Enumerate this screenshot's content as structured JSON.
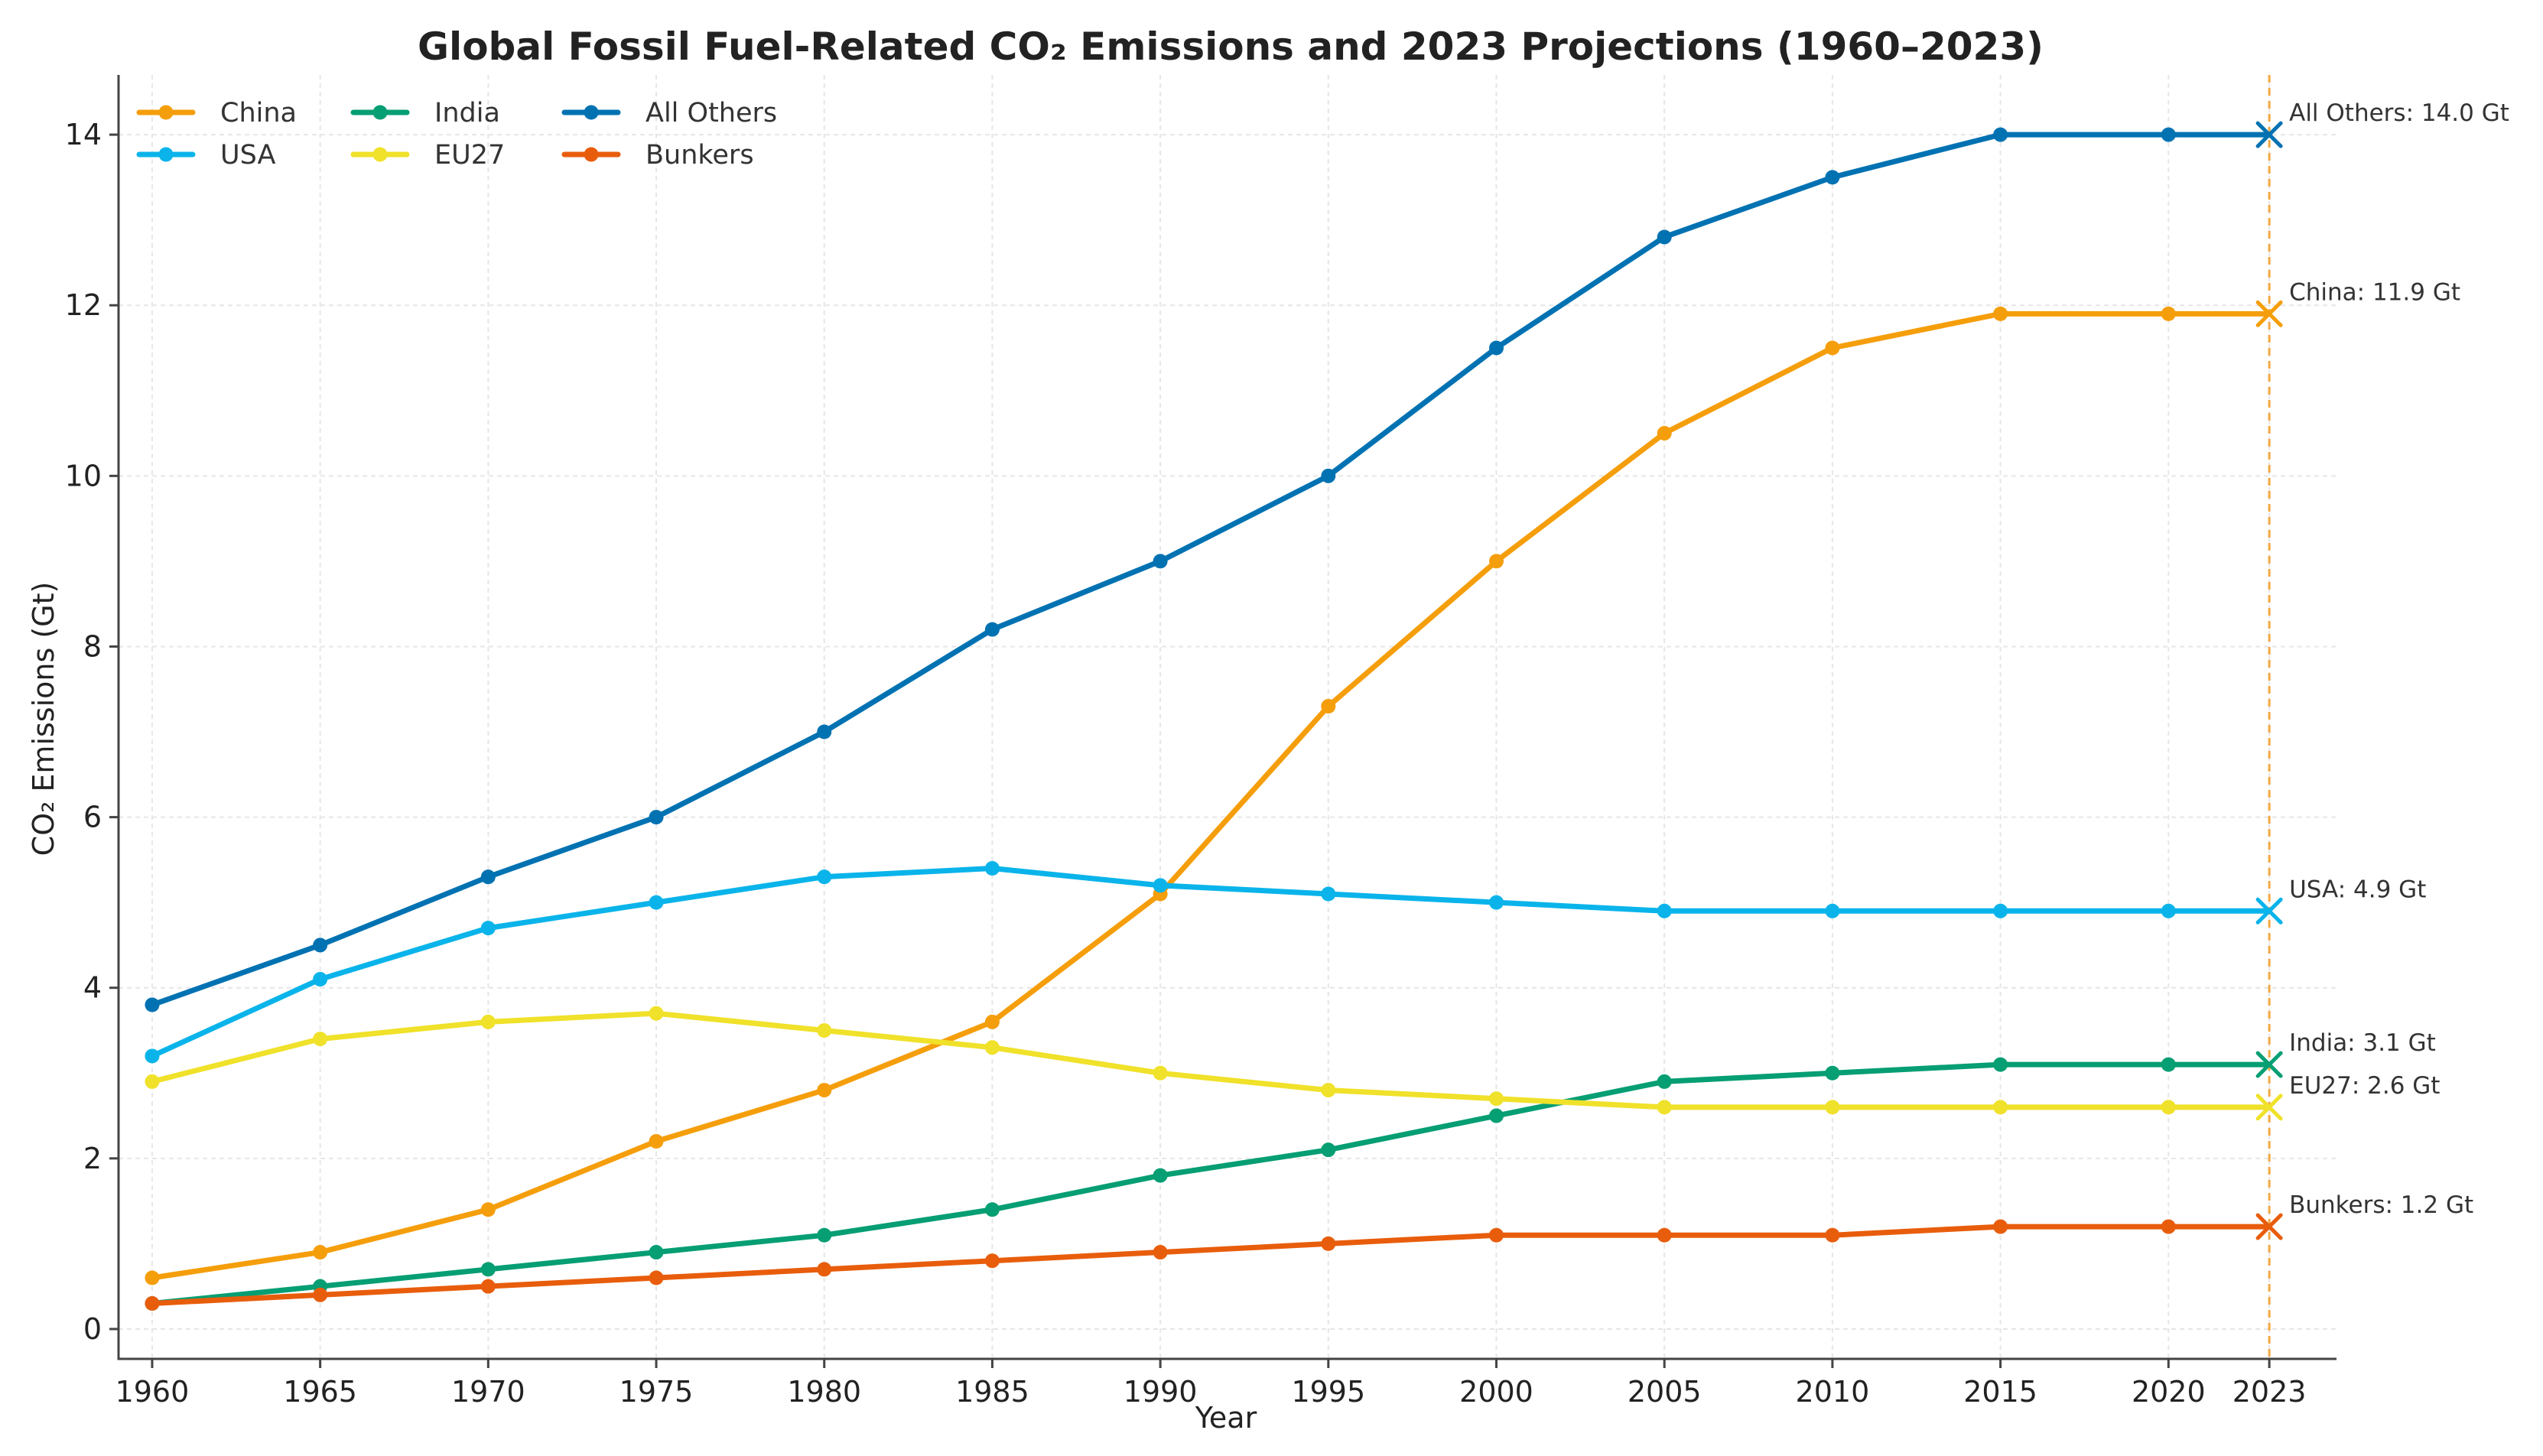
{
  "chart_data": {
    "type": "line",
    "title": "Global Fossil Fuel-Related CO₂ Emissions and 2023 Projections (1960–2023)",
    "xlabel": "Year",
    "ylabel": "CO₂ Emissions (Gt)",
    "x": [
      1960,
      1965,
      1970,
      1975,
      1980,
      1985,
      1990,
      1995,
      2000,
      2005,
      2010,
      2015,
      2020
    ],
    "x_ticks": [
      1960,
      1965,
      1970,
      1975,
      1980,
      1985,
      1990,
      1995,
      2000,
      2005,
      2010,
      2015,
      2020,
      2023
    ],
    "xlim": [
      1959,
      2025
    ],
    "ylim": [
      -0.35,
      14.7
    ],
    "y_ticks": [
      0,
      2,
      4,
      6,
      8,
      10,
      12,
      14
    ],
    "grid": true,
    "legend_position": "top-left",
    "projection_year": 2023,
    "series": [
      {
        "name": "China",
        "color": "#f59e0b",
        "values": [
          0.6,
          0.9,
          1.4,
          2.2,
          2.8,
          3.6,
          5.1,
          7.3,
          9.0,
          10.5,
          11.5,
          11.9,
          11.9
        ],
        "projection": 11.9,
        "annotation": "China: 11.9 Gt"
      },
      {
        "name": "USA",
        "color": "#0ab4ea",
        "values": [
          3.2,
          4.1,
          4.7,
          5.0,
          5.3,
          5.4,
          5.2,
          5.1,
          5.0,
          4.9,
          4.9,
          4.9,
          4.9
        ],
        "projection": 4.9,
        "annotation": "USA: 4.9 Gt"
      },
      {
        "name": "India",
        "color": "#069e73",
        "values": [
          0.3,
          0.5,
          0.7,
          0.9,
          1.1,
          1.4,
          1.8,
          2.1,
          2.5,
          2.9,
          3.0,
          3.1,
          3.1
        ],
        "projection": 3.1,
        "annotation": "India: 3.1 Gt"
      },
      {
        "name": "EU27",
        "color": "#f0e12a",
        "values": [
          2.9,
          3.4,
          3.6,
          3.7,
          3.5,
          3.3,
          3.0,
          2.8,
          2.7,
          2.6,
          2.6,
          2.6,
          2.6
        ],
        "projection": 2.6,
        "annotation": "EU27: 2.6 Gt"
      },
      {
        "name": "All Others",
        "color": "#0072b2",
        "values": [
          3.8,
          4.5,
          5.3,
          6.0,
          7.0,
          8.2,
          9.0,
          10.0,
          11.5,
          12.8,
          13.5,
          14.0,
          14.0
        ],
        "projection": 14.0,
        "annotation": "All Others: 14.0 Gt"
      },
      {
        "name": "Bunkers",
        "color": "#e85d0c",
        "values": [
          0.3,
          0.4,
          0.5,
          0.6,
          0.7,
          0.8,
          0.9,
          1.0,
          1.1,
          1.1,
          1.1,
          1.2,
          1.2
        ],
        "projection": 1.2,
        "annotation": "Bunkers: 1.2 Gt"
      }
    ],
    "legend_order": [
      "China",
      "USA",
      "India",
      "EU27",
      "All Others",
      "Bunkers"
    ],
    "projection_line_color": "#f5a742"
  }
}
